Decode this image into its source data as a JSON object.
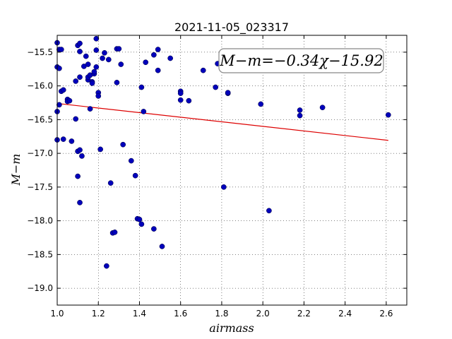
{
  "chart_data": {
    "type": "scatter",
    "title": "2021-11-05_023317",
    "xlabel": "airmass",
    "ylabel": "M−m",
    "xlim": [
      1.0,
      2.7
    ],
    "ylim": [
      -19.25,
      -15.25
    ],
    "ylim_inverted": false,
    "xticks": [
      1.0,
      1.2,
      1.4,
      1.6,
      1.8,
      2.0,
      2.2,
      2.4,
      2.6
    ],
    "xtick_labels": [
      "1.0",
      "1.2",
      "1.4",
      "1.6",
      "1.8",
      "2.0",
      "2.2",
      "2.4",
      "2.6"
    ],
    "yticks": [
      -15.5,
      -16.0,
      -16.5,
      -17.0,
      -17.5,
      -18.0,
      -18.5,
      -19.0
    ],
    "ytick_labels": [
      "−15.5",
      "−16.0",
      "−16.5",
      "−17.0",
      "−17.5",
      "−18.0",
      "−18.5",
      "−19.0"
    ],
    "grid": true,
    "annotation": "M−m=−0.34χ−15.92",
    "fit": {
      "slope": -0.34,
      "intercept": -15.92,
      "x_range": [
        1.0,
        2.61
      ],
      "color": "#dd0000"
    },
    "point_color": "#0000bb",
    "points": [
      [
        1.0,
        -15.36
      ],
      [
        1.01,
        -15.46
      ],
      [
        1.02,
        -15.46
      ],
      [
        1.0,
        -15.72
      ],
      [
        1.01,
        -15.74
      ],
      [
        1.0,
        -16.38
      ],
      [
        1.01,
        -16.28
      ],
      [
        1.02,
        -16.08
      ],
      [
        1.03,
        -16.06
      ],
      [
        1.0,
        -16.8
      ],
      [
        1.03,
        -16.79
      ],
      [
        1.05,
        -16.2
      ],
      [
        1.05,
        -16.23
      ],
      [
        1.06,
        -16.22
      ],
      [
        1.07,
        -16.82
      ],
      [
        1.09,
        -15.93
      ],
      [
        1.09,
        -16.49
      ],
      [
        1.1,
        -16.97
      ],
      [
        1.1,
        -17.34
      ],
      [
        1.1,
        -15.4
      ],
      [
        1.11,
        -15.37
      ],
      [
        1.11,
        -15.49
      ],
      [
        1.11,
        -15.87
      ],
      [
        1.11,
        -16.95
      ],
      [
        1.12,
        -17.04
      ],
      [
        1.11,
        -17.73
      ],
      [
        1.13,
        -15.71
      ],
      [
        1.14,
        -15.56
      ],
      [
        1.15,
        -15.68
      ],
      [
        1.15,
        -15.91
      ],
      [
        1.15,
        -15.87
      ],
      [
        1.16,
        -15.84
      ],
      [
        1.16,
        -16.34
      ],
      [
        1.17,
        -15.94
      ],
      [
        1.17,
        -15.96
      ],
      [
        1.18,
        -15.82
      ],
      [
        1.18,
        -15.79
      ],
      [
        1.19,
        -15.3
      ],
      [
        1.19,
        -15.72
      ],
      [
        1.19,
        -15.47
      ],
      [
        1.2,
        -16.1
      ],
      [
        1.2,
        -16.15
      ],
      [
        1.21,
        -16.94
      ],
      [
        1.22,
        -15.59
      ],
      [
        1.23,
        -15.51
      ],
      [
        1.24,
        -18.67
      ],
      [
        1.25,
        -15.61
      ],
      [
        1.26,
        -17.44
      ],
      [
        1.27,
        -18.18
      ],
      [
        1.28,
        -18.17
      ],
      [
        1.29,
        -15.95
      ],
      [
        1.29,
        -15.45
      ],
      [
        1.3,
        -15.45
      ],
      [
        1.31,
        -15.68
      ],
      [
        1.32,
        -16.87
      ],
      [
        1.36,
        -17.11
      ],
      [
        1.38,
        -17.33
      ],
      [
        1.39,
        -17.97
      ],
      [
        1.4,
        -17.98
      ],
      [
        1.41,
        -18.05
      ],
      [
        1.41,
        -16.02
      ],
      [
        1.42,
        -16.38
      ],
      [
        1.43,
        -15.65
      ],
      [
        1.47,
        -15.54
      ],
      [
        1.47,
        -18.12
      ],
      [
        1.49,
        -15.46
      ],
      [
        1.49,
        -15.77
      ],
      [
        1.51,
        -18.38
      ],
      [
        1.55,
        -15.59
      ],
      [
        1.6,
        -16.08
      ],
      [
        1.6,
        -16.11
      ],
      [
        1.6,
        -16.21
      ],
      [
        1.64,
        -16.22
      ],
      [
        1.71,
        -15.77
      ],
      [
        1.77,
        -16.02
      ],
      [
        1.78,
        -15.67
      ],
      [
        1.81,
        -17.5
      ],
      [
        1.83,
        -16.11
      ],
      [
        1.83,
        -16.1
      ],
      [
        1.99,
        -16.27
      ],
      [
        2.03,
        -17.85
      ],
      [
        2.18,
        -16.36
      ],
      [
        2.18,
        -16.44
      ],
      [
        2.29,
        -16.32
      ],
      [
        2.61,
        -16.43
      ]
    ]
  }
}
